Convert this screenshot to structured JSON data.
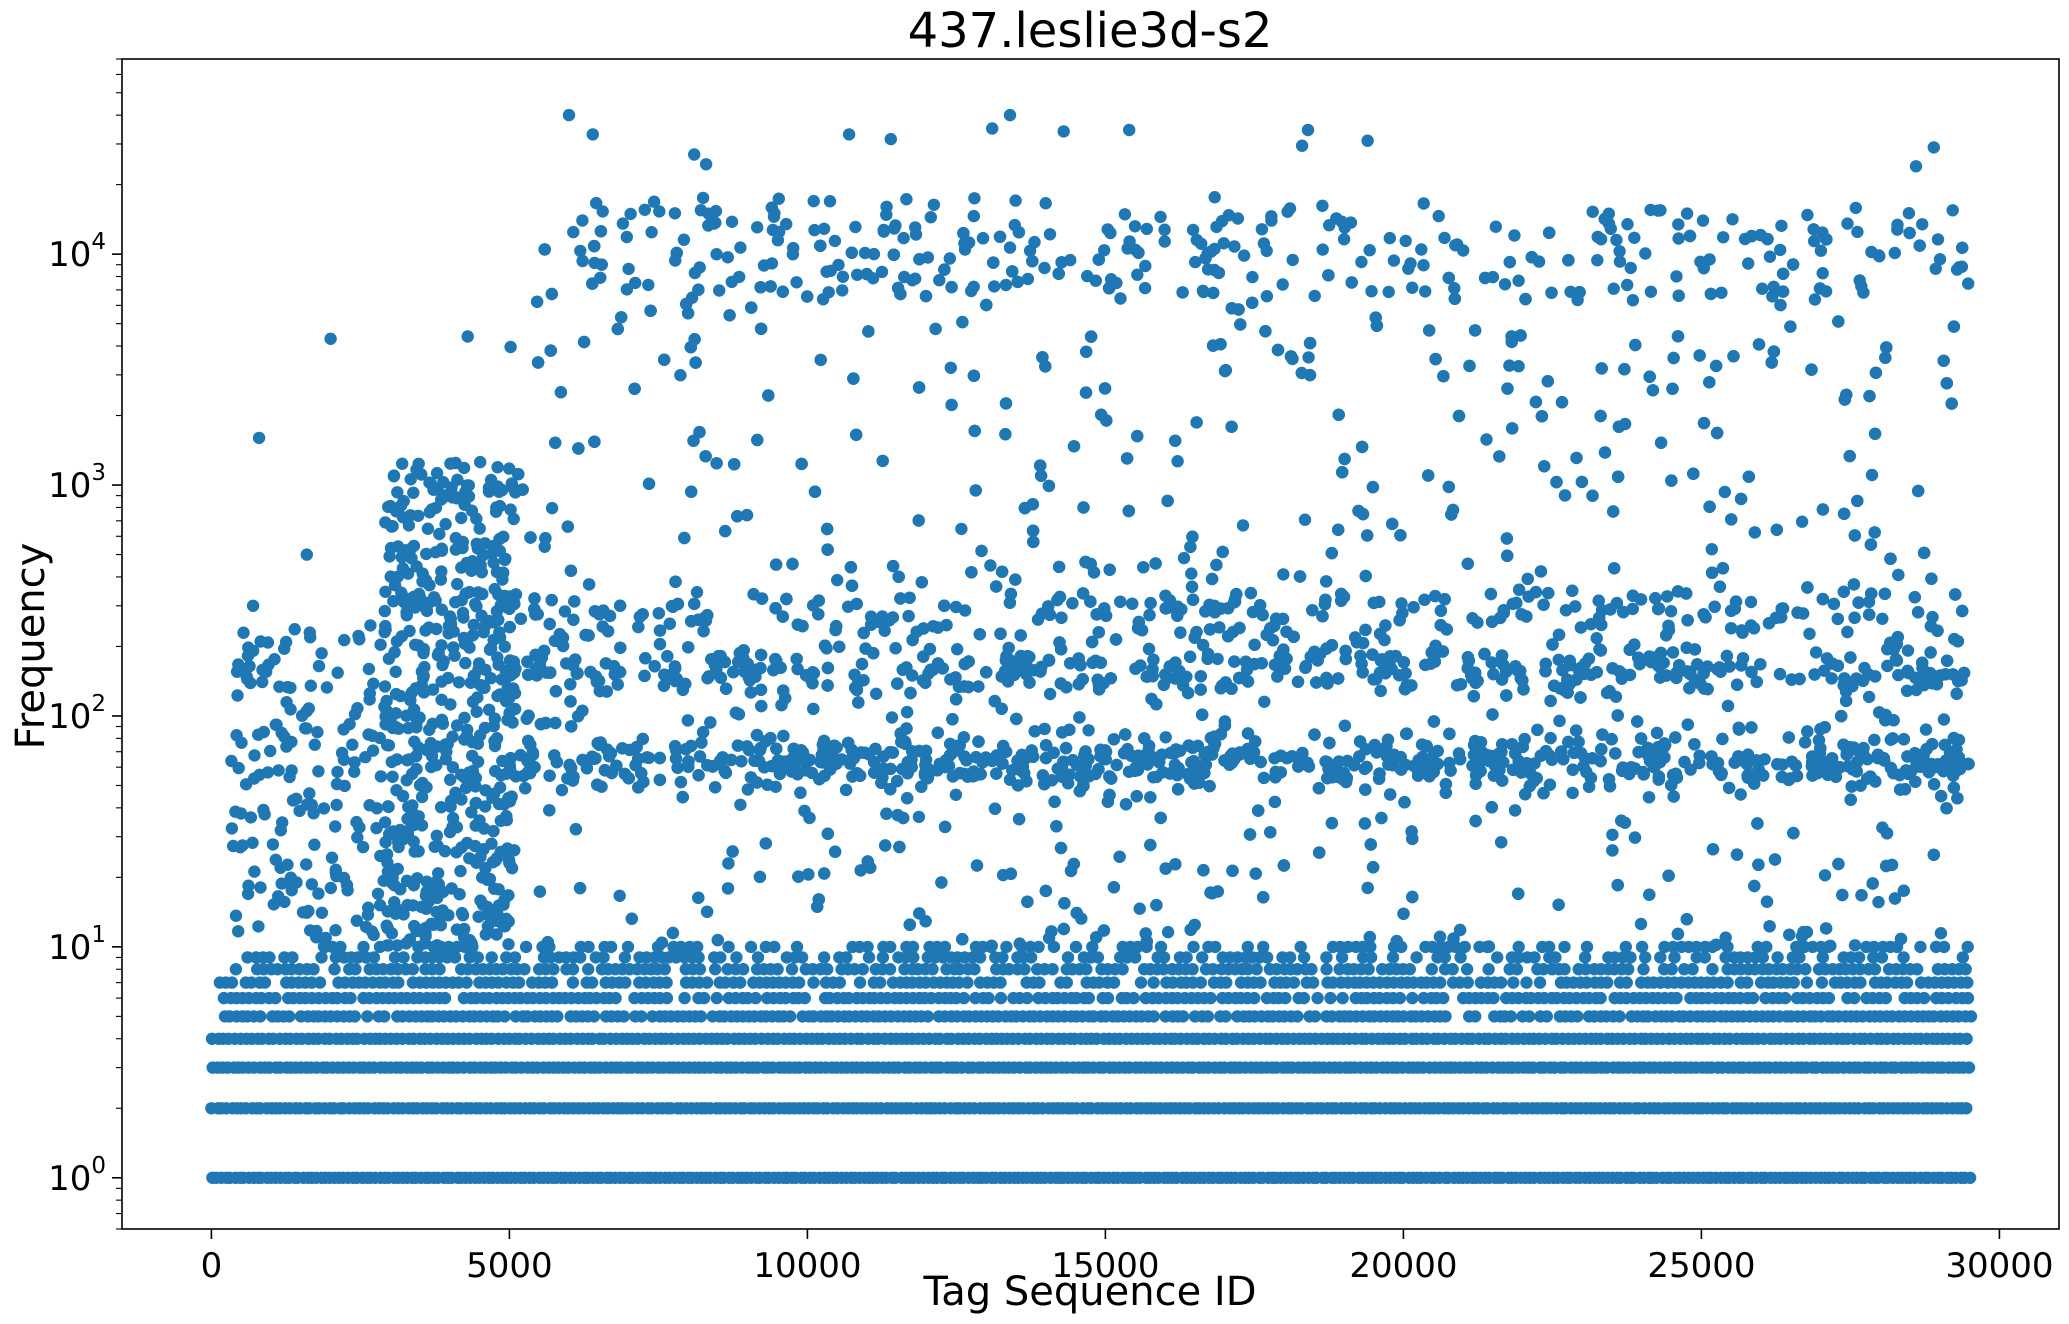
{
  "chart_data": {
    "type": "scatter",
    "title": "437.leslie3d-s2",
    "xlabel": "Tag Sequence ID",
    "ylabel": "Frequency",
    "xlim": [
      -1500,
      31000
    ],
    "ylim": [
      0.6,
      70000
    ],
    "yscale": "log",
    "grid": false,
    "legend": "none",
    "color": "#1f77b4",
    "x_ticks": [
      {
        "value": 0,
        "label": "0"
      },
      {
        "value": 5000,
        "label": "5000"
      },
      {
        "value": 10000,
        "label": "10000"
      },
      {
        "value": 15000,
        "label": "15000"
      },
      {
        "value": 20000,
        "label": "20000"
      },
      {
        "value": 25000,
        "label": "25000"
      },
      {
        "value": 30000,
        "label": "30000"
      }
    ],
    "y_ticks": [
      {
        "value": 1,
        "base": "10",
        "exp": "0"
      },
      {
        "value": 10,
        "base": "10",
        "exp": "1"
      },
      {
        "value": 100,
        "base": "10",
        "exp": "2"
      },
      {
        "value": 1000,
        "base": "10",
        "exp": "3"
      },
      {
        "value": 10000,
        "base": "10",
        "exp": "4"
      }
    ],
    "x_max_id": 29500,
    "horizontal_bands": [
      {
        "y": 1,
        "x_start": 0,
        "x_end": 29500
      },
      {
        "y": 2,
        "x_start": 0,
        "x_end": 29500
      },
      {
        "y": 3,
        "x_start": 0,
        "x_end": 29500
      },
      {
        "y": 4,
        "x_start": 0,
        "x_end": 29500
      },
      {
        "y": 5,
        "x_start": 200,
        "x_end": 29500
      },
      {
        "y": 6,
        "x_start": 200,
        "x_end": 29500
      },
      {
        "y": 7,
        "x_start": 0,
        "x_end": 29500
      },
      {
        "y": 8,
        "x_start": 400,
        "x_end": 29500
      },
      {
        "y": 9,
        "x_start": 600,
        "x_end": 29500
      },
      {
        "y": 10,
        "x_start": 1500,
        "x_end": 29500
      }
    ],
    "notable_points": [
      {
        "x": 6000,
        "y": 40000
      },
      {
        "x": 6400,
        "y": 33000
      },
      {
        "x": 8100,
        "y": 27000
      },
      {
        "x": 8300,
        "y": 24500
      },
      {
        "x": 10700,
        "y": 33000
      },
      {
        "x": 11400,
        "y": 31500
      },
      {
        "x": 13100,
        "y": 35000
      },
      {
        "x": 13400,
        "y": 40000
      },
      {
        "x": 14300,
        "y": 34000
      },
      {
        "x": 15400,
        "y": 34500
      },
      {
        "x": 18300,
        "y": 29500
      },
      {
        "x": 18400,
        "y": 34500
      },
      {
        "x": 19400,
        "y": 31000
      },
      {
        "x": 28600,
        "y": 24000
      },
      {
        "x": 28900,
        "y": 29000
      },
      {
        "x": 2000,
        "y": 4300
      },
      {
        "x": 4300,
        "y": 4400
      },
      {
        "x": 800,
        "y": 1600
      },
      {
        "x": 1600,
        "y": 500
      },
      {
        "x": 700,
        "y": 300
      }
    ]
  }
}
